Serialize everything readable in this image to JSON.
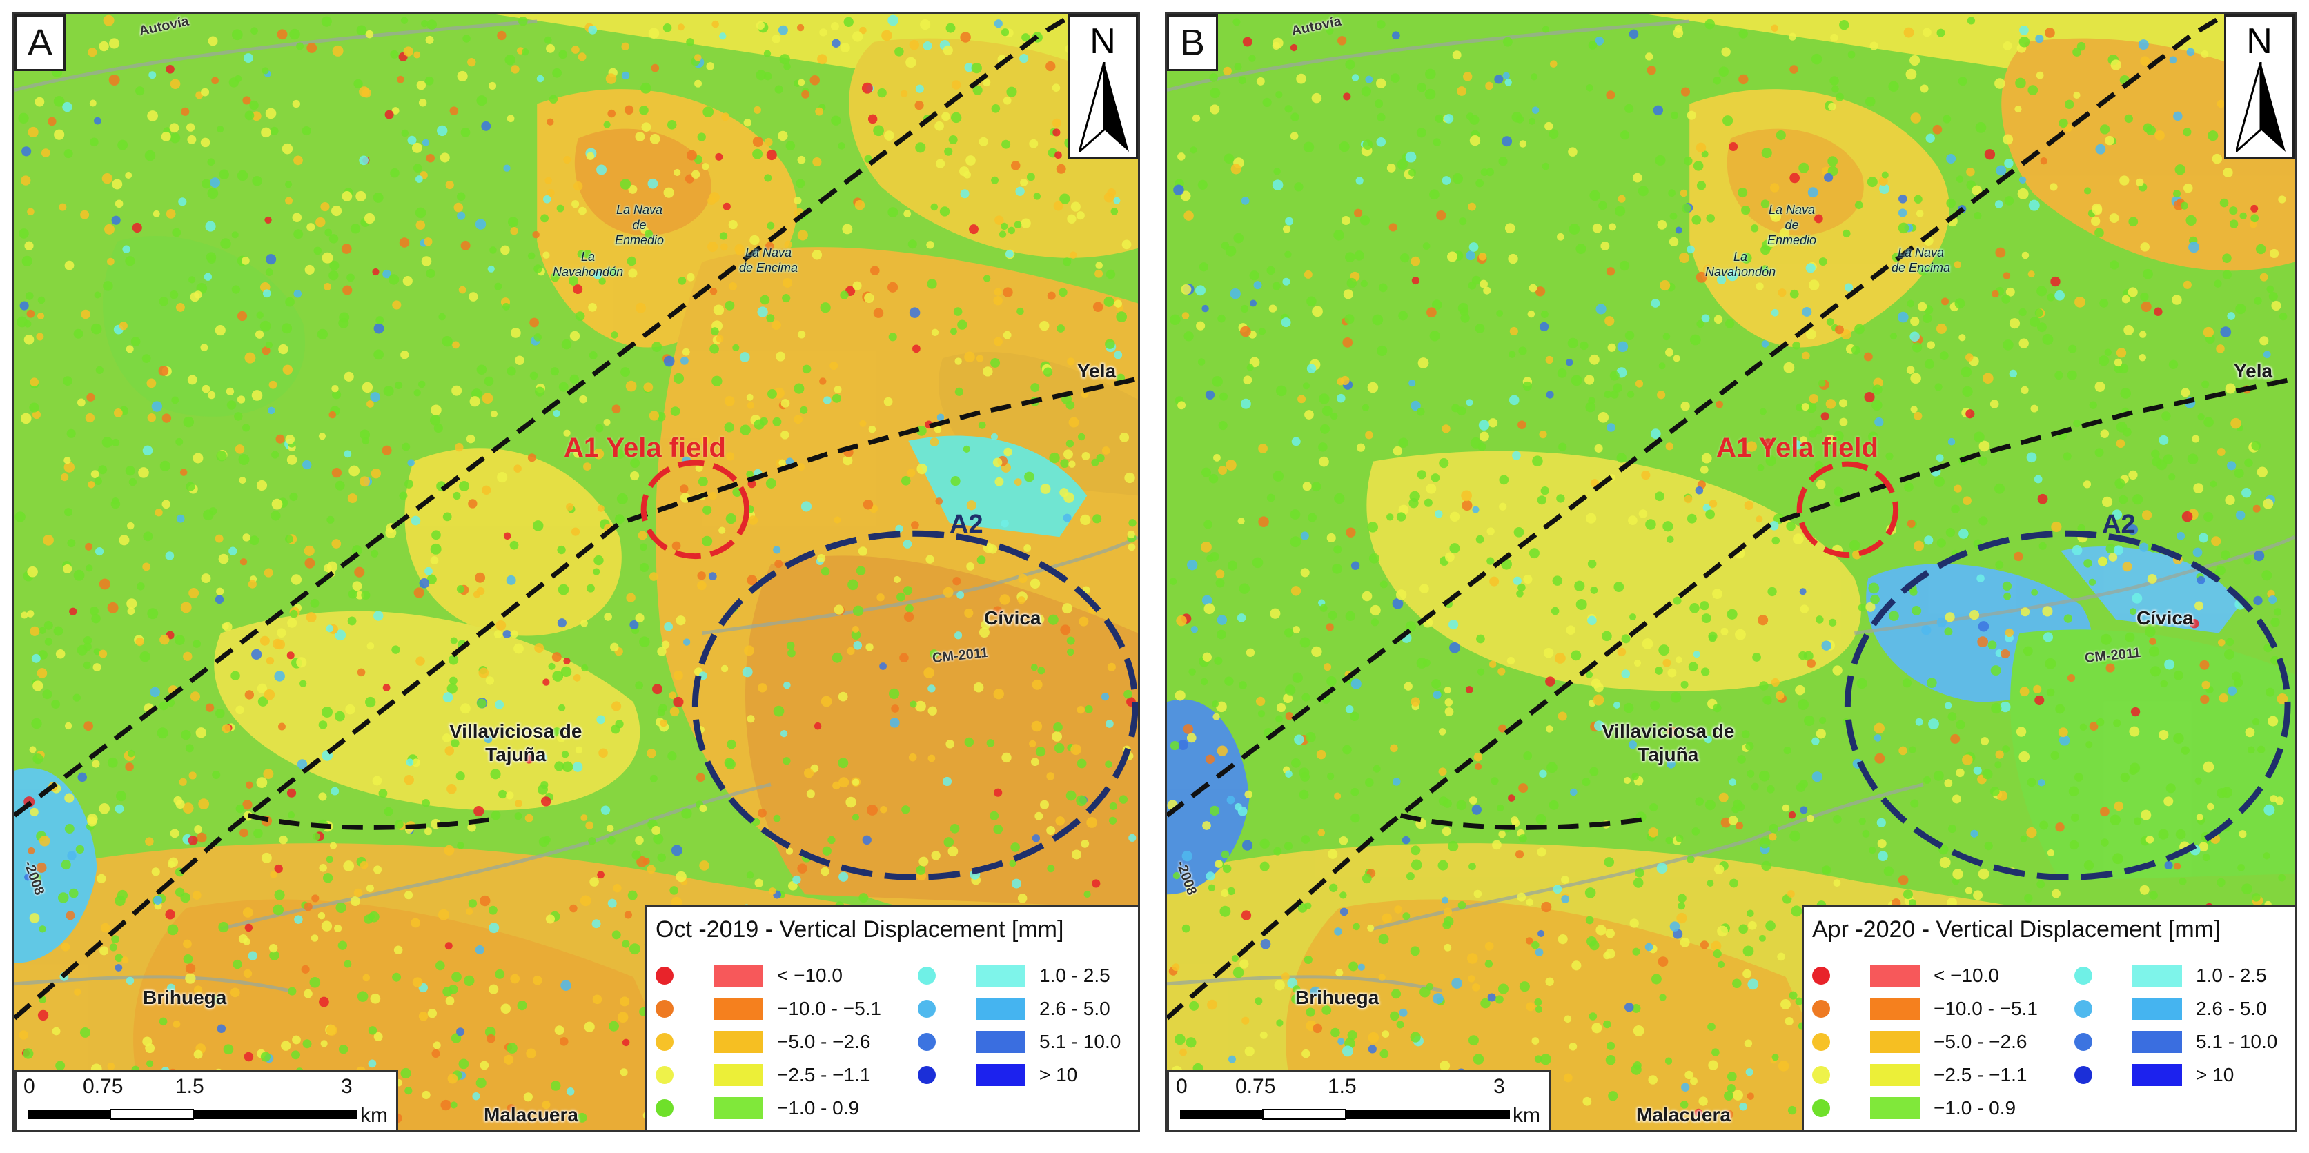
{
  "panels": [
    {
      "letter": "A",
      "north": "N",
      "labels": {
        "autovia": "Autovía",
        "la_nava_enmedio": "La Nava\nde\nEnmedio",
        "la_navahondon": "La\nNavahondón",
        "la_nava_encima": "La Nava\nde Encima",
        "yela": "Yela",
        "field": "A1 Yela field",
        "a2": "A2",
        "civica": "Cívica",
        "cm2011": "CM-2011",
        "villaviciosa": "Villaviciosa de\nTajuña",
        "brihuega": "Brihuega",
        "malacuera": "Malacuera",
        "road2008": "-2008"
      },
      "legend_title": "Oct -2019 - Vertical Displacement [mm]",
      "scale": {
        "ticks": [
          "0",
          "0.75",
          "1.5",
          "3"
        ],
        "unit": "km"
      }
    },
    {
      "letter": "B",
      "north": "N",
      "labels": {
        "autovia": "Autovía",
        "la_nava_enmedio": "La Nava\nde\nEnmedio",
        "la_navahondon": "La\nNavahondón",
        "la_nava_encima": "La Nava\nde Encima",
        "yela": "Yela",
        "field": "A1 Yela field",
        "a2": "A2",
        "civica": "Cívica",
        "cm2011": "CM-2011",
        "villaviciosa": "Villaviciosa de\nTajuña",
        "brihuega": "Brihuega",
        "malacuera": "Malacuera",
        "road2008": "-2008"
      },
      "legend_title": "Apr -2020 - Vertical Displacement [mm]",
      "scale": {
        "ticks": [
          "0",
          "0.75",
          "1.5",
          "3"
        ],
        "unit": "km"
      }
    }
  ],
  "legend_classes": {
    "left": [
      {
        "label": "< −10.0",
        "dot": "#e8232a",
        "swatch": "#f7585a"
      },
      {
        "label": "−10.0 - −5.1",
        "dot": "#ee7a22",
        "swatch": "#f5801e"
      },
      {
        "label": "−5.0 - −2.6",
        "dot": "#f7c228",
        "swatch": "#f6bf22"
      },
      {
        "label": "−2.5 - −1.1",
        "dot": "#eef24a",
        "swatch": "#ecef38"
      },
      {
        "label": "−1.0 - 0.9",
        "dot": "#6fe02a",
        "swatch": "#80e83a"
      }
    ],
    "right": [
      {
        "label": "1.0 - 2.5",
        "dot": "#6ff0e6",
        "swatch": "#7ef4ea"
      },
      {
        "label": "2.6 - 5.0",
        "dot": "#4fb9ee",
        "swatch": "#45b4f0"
      },
      {
        "label": "5.1 - 10.0",
        "dot": "#3c74e0",
        "swatch": "#3a6ee0"
      },
      {
        "label": "> 10",
        "dot": "#1b2fd8",
        "swatch": "#1c22ee"
      }
    ]
  },
  "colors": {
    "fault_line": "#111111",
    "field_circle": "#e3262a",
    "a2_circle": "#1f2f6b"
  }
}
